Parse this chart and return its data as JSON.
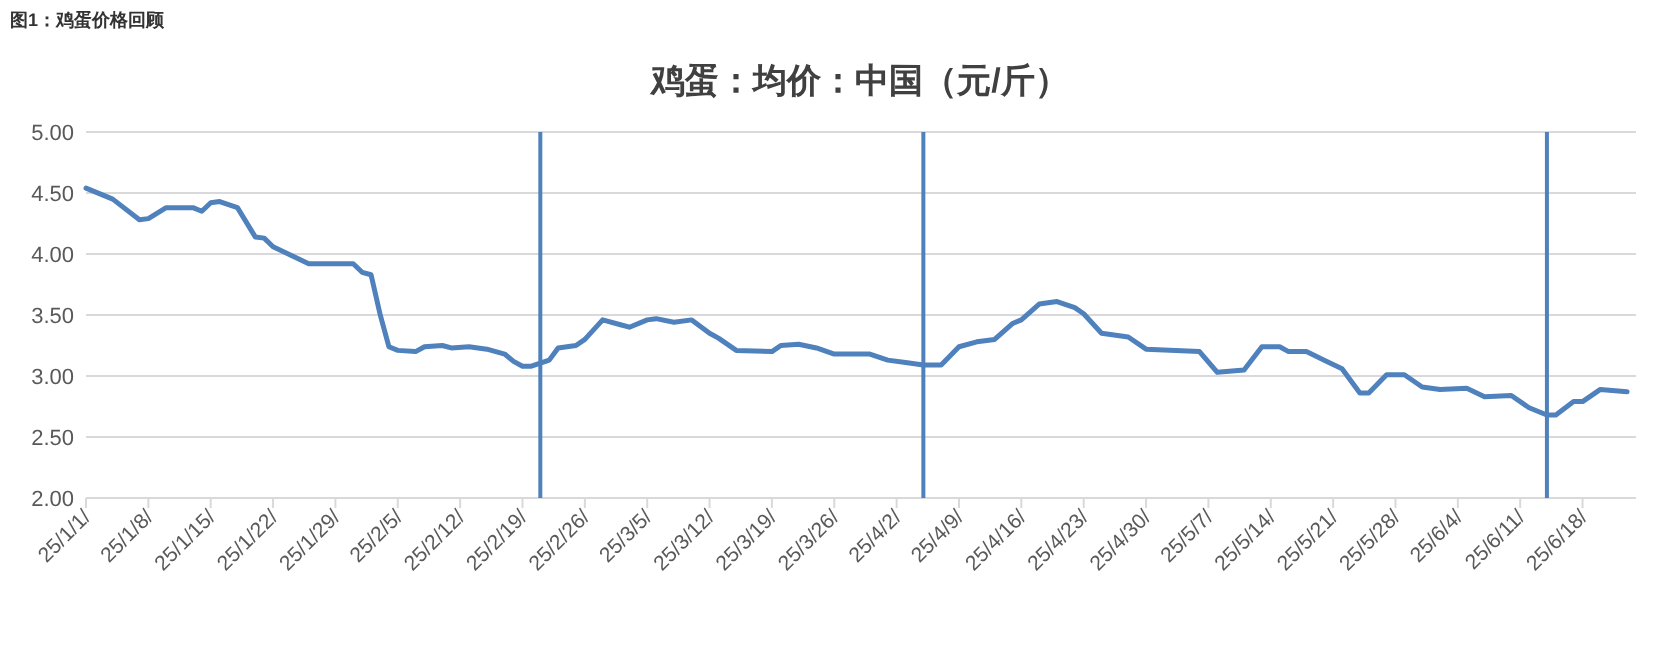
{
  "chart_data": {
    "type": "line",
    "title": "鸡蛋：均价：中国（元/斤）",
    "annotations": [
      "图1：鸡蛋价格回顾"
    ],
    "x": [
      "--01-01",
      "--01-04",
      "--01-07",
      "--01-08",
      "--01-10",
      "--01-13",
      "--01-14",
      "--01-15",
      "--01-16",
      "--01-18",
      "--01-20",
      "--01-21",
      "--01-22",
      "--01-24",
      "--01-26",
      "--01-31",
      "--02-01",
      "--02-02",
      "--02-03",
      "--02-04",
      "--02-05",
      "--02-07",
      "--02-08",
      "--02-10",
      "--02-11",
      "--02-13",
      "--02-15",
      "--02-17",
      "--02-18",
      "--02-19",
      "--02-20",
      "--02-22",
      "--02-23",
      "--02-25",
      "--02-26",
      "--02-28",
      "--03-02",
      "--03-03",
      "--03-05",
      "--03-06",
      "--03-08",
      "--03-10",
      "--03-12",
      "--03-13",
      "--03-15",
      "--03-19",
      "--03-20",
      "--03-22",
      "--03-24",
      "--03-26",
      "--03-30",
      "--04-01",
      "--04-03",
      "--04-05",
      "--04-07",
      "--04-09",
      "--04-11",
      "--04-13",
      "--04-15",
      "--04-16",
      "--04-18",
      "--04-20",
      "--04-22",
      "--04-23",
      "--04-25",
      "--04-27",
      "--04-28",
      "--04-30",
      "--05-06",
      "--05-08",
      "--05-11",
      "--05-13",
      "--05-15",
      "--05-16",
      "--05-18",
      "--05-20",
      "--05-22",
      "--05-24",
      "--05-25",
      "--05-27",
      "--05-29",
      "--05-31",
      "--06-02",
      "--06-05",
      "--06-07",
      "--06-10",
      "--06-12",
      "--06-14",
      "--06-15",
      "--06-17",
      "--06-18",
      "--06-20",
      "--06-23"
    ],
    "series": [
      {
        "color": "#4f81bd",
        "values": [
          4.54,
          4.45,
          4.28,
          4.29,
          4.38,
          4.38,
          4.35,
          4.42,
          4.43,
          4.38,
          4.14,
          4.13,
          4.06,
          3.99,
          3.92,
          3.92,
          3.85,
          3.83,
          3.51,
          3.24,
          3.21,
          3.2,
          3.24,
          3.25,
          3.23,
          3.24,
          3.22,
          3.18,
          3.12,
          3.08,
          3.08,
          3.13,
          3.23,
          3.25,
          3.3,
          3.46,
          3.42,
          3.4,
          3.46,
          3.47,
          3.44,
          3.46,
          3.35,
          3.31,
          3.21,
          3.2,
          3.25,
          3.26,
          3.23,
          3.18,
          3.18,
          3.13,
          3.11,
          3.09,
          3.09,
          3.24,
          3.28,
          3.3,
          3.43,
          3.46,
          3.59,
          3.61,
          3.56,
          3.51,
          3.35,
          3.33,
          3.32,
          3.22,
          3.2,
          3.03,
          3.05,
          3.24,
          3.24,
          3.2,
          3.2,
          3.13,
          3.06,
          2.86,
          2.86,
          3.01,
          3.01,
          2.91,
          2.89,
          2.9,
          2.83,
          2.84,
          2.74,
          2.68,
          2.68,
          2.79,
          2.79,
          2.89,
          2.87
        ]
      }
    ],
    "xlim": [
      "--01-01",
      "--06-24"
    ],
    "xticks": [
      {
        "value": "--01-01",
        "label": "25/1/1/"
      },
      {
        "value": "--01-08",
        "label": "25/1/8/"
      },
      {
        "value": "--01-15",
        "label": "25/1/15/"
      },
      {
        "value": "--01-22",
        "label": "25/1/22/"
      },
      {
        "value": "--01-29",
        "label": "25/1/29/"
      },
      {
        "value": "--02-05",
        "label": "25/2/5/"
      },
      {
        "value": "--02-12",
        "label": "25/2/12/"
      },
      {
        "value": "--02-19",
        "label": "25/2/19/"
      },
      {
        "value": "--02-26",
        "label": "25/2/26/"
      },
      {
        "value": "--03-05",
        "label": "25/3/5/"
      },
      {
        "value": "--03-12",
        "label": "25/3/12/"
      },
      {
        "value": "--03-19",
        "label": "25/3/19/"
      },
      {
        "value": "--03-26",
        "label": "25/3/26/"
      },
      {
        "value": "--04-02",
        "label": "25/4/2/"
      },
      {
        "value": "--04-09",
        "label": "25/4/9/"
      },
      {
        "value": "--04-16",
        "label": "25/4/16/"
      },
      {
        "value": "--04-23",
        "label": "25/4/23/"
      },
      {
        "value": "--04-30",
        "label": "25/4/30/"
      },
      {
        "value": "--05-07",
        "label": "25/5/7/"
      },
      {
        "value": "--05-14",
        "label": "25/5/14/"
      },
      {
        "value": "--05-21",
        "label": "25/5/21/"
      },
      {
        "value": "--05-28",
        "label": "25/5/28/"
      },
      {
        "value": "--06-04",
        "label": "25/6/4/"
      },
      {
        "value": "--06-11",
        "label": "25/6/11/"
      },
      {
        "value": "--06-18",
        "label": "25/6/18/"
      }
    ],
    "ylim": [
      2,
      5
    ],
    "yticks": [
      {
        "value": 2,
        "label": "2.00"
      },
      {
        "value": 2.5,
        "label": "2.50"
      },
      {
        "value": 3,
        "label": "3.00"
      },
      {
        "value": 3.5,
        "label": "3.50"
      },
      {
        "value": 4,
        "label": "4.00"
      },
      {
        "value": 4.5,
        "label": "4.50"
      },
      {
        "value": 5,
        "label": "5.00"
      }
    ],
    "grid": "y",
    "marker": "none",
    "line_style": "solid",
    "ref_lines": [
      {
        "axis": "x",
        "value": "--02-21",
        "color": "#4f81bd"
      },
      {
        "axis": "x",
        "value": "--04-05",
        "color": "#4f81bd"
      },
      {
        "axis": "x",
        "value": "--06-14",
        "color": "#4f81bd"
      }
    ]
  }
}
